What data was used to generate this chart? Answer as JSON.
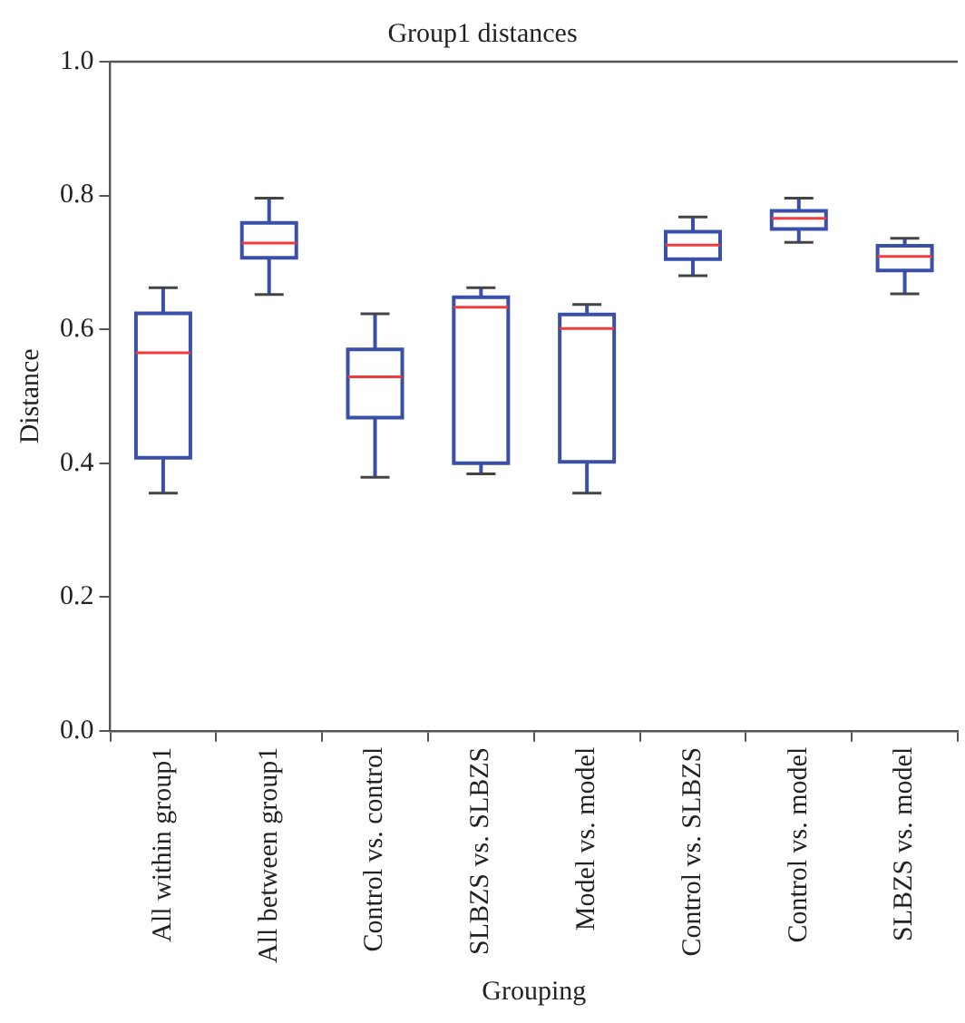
{
  "chart_data": {
    "type": "box",
    "title": "Group1 distances",
    "xlabel": "Grouping",
    "ylabel": "Distance",
    "categories": [
      "All within group1",
      "All between group1",
      "Control vs. control",
      "SLBZS vs. SLBZS",
      "Model vs. model",
      "Control vs. SLBZS",
      "Control vs. model",
      "SLBZS vs. model"
    ],
    "color": "#3a50a8",
    "boxes": [
      {
        "low": 0.355,
        "q1": 0.408,
        "median": 0.565,
        "q3": 0.624,
        "high": 0.662
      },
      {
        "low": 0.652,
        "q1": 0.707,
        "median": 0.729,
        "q3": 0.759,
        "high": 0.796
      },
      {
        "low": 0.379,
        "q1": 0.468,
        "median": 0.529,
        "q3": 0.57,
        "high": 0.623
      },
      {
        "low": 0.384,
        "q1": 0.4,
        "median": 0.633,
        "q3": 0.648,
        "high": 0.662
      },
      {
        "low": 0.355,
        "q1": 0.402,
        "median": 0.601,
        "q3": 0.622,
        "high": 0.637
      },
      {
        "low": 0.68,
        "q1": 0.705,
        "median": 0.726,
        "q3": 0.746,
        "high": 0.768
      },
      {
        "low": 0.73,
        "q1": 0.75,
        "median": 0.766,
        "q3": 0.777,
        "high": 0.796
      },
      {
        "low": 0.653,
        "q1": 0.688,
        "median": 0.709,
        "q3": 0.725,
        "high": 0.736
      }
    ],
    "ylim": [
      0,
      1
    ],
    "yticks": [
      {
        "value": 0,
        "label": "0.0"
      },
      {
        "value": 0.2,
        "label": "0.2"
      },
      {
        "value": 0.4,
        "label": "0.4"
      },
      {
        "value": 0.6,
        "label": "0.6"
      },
      {
        "value": 0.8,
        "label": "0.8"
      },
      {
        "value": 1,
        "label": "1.0"
      }
    ],
    "grid": false,
    "legend": false
  }
}
